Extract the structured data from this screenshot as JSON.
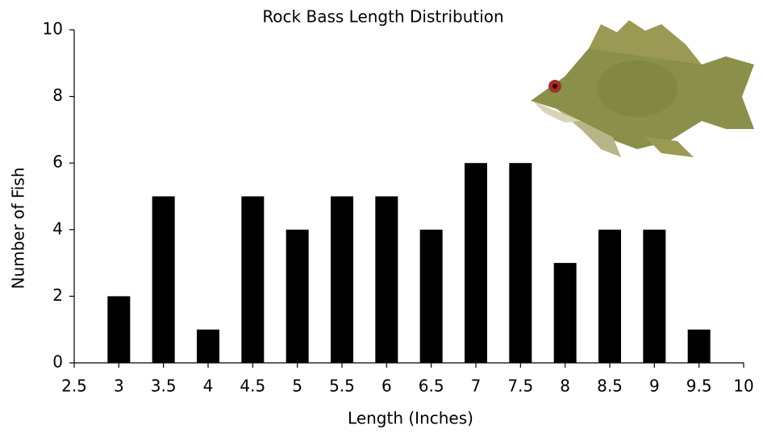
{
  "chart_data": {
    "type": "bar",
    "title": "Rock Bass Length Distribution",
    "x_label": "Length (Inches)",
    "y_label": "Number of Fish",
    "x": [
      3,
      3.5,
      4,
      4.5,
      5,
      5.5,
      6,
      6.5,
      7,
      7.5,
      8,
      8.5,
      9,
      9.5
    ],
    "values": [
      2,
      5,
      1,
      5,
      4,
      5,
      5,
      4,
      6,
      6,
      3,
      4,
      4,
      1
    ],
    "color": "#000000",
    "xlim": [
      2.5,
      10
    ],
    "xticks": [
      2.5,
      3,
      3.5,
      4,
      4.5,
      5,
      5.5,
      6,
      6.5,
      7,
      7.5,
      8,
      8.5,
      9,
      9.5,
      10
    ],
    "ylim": [
      0,
      10
    ],
    "yticks": [
      0,
      2,
      4,
      6,
      8,
      10
    ],
    "grid": false
  }
}
